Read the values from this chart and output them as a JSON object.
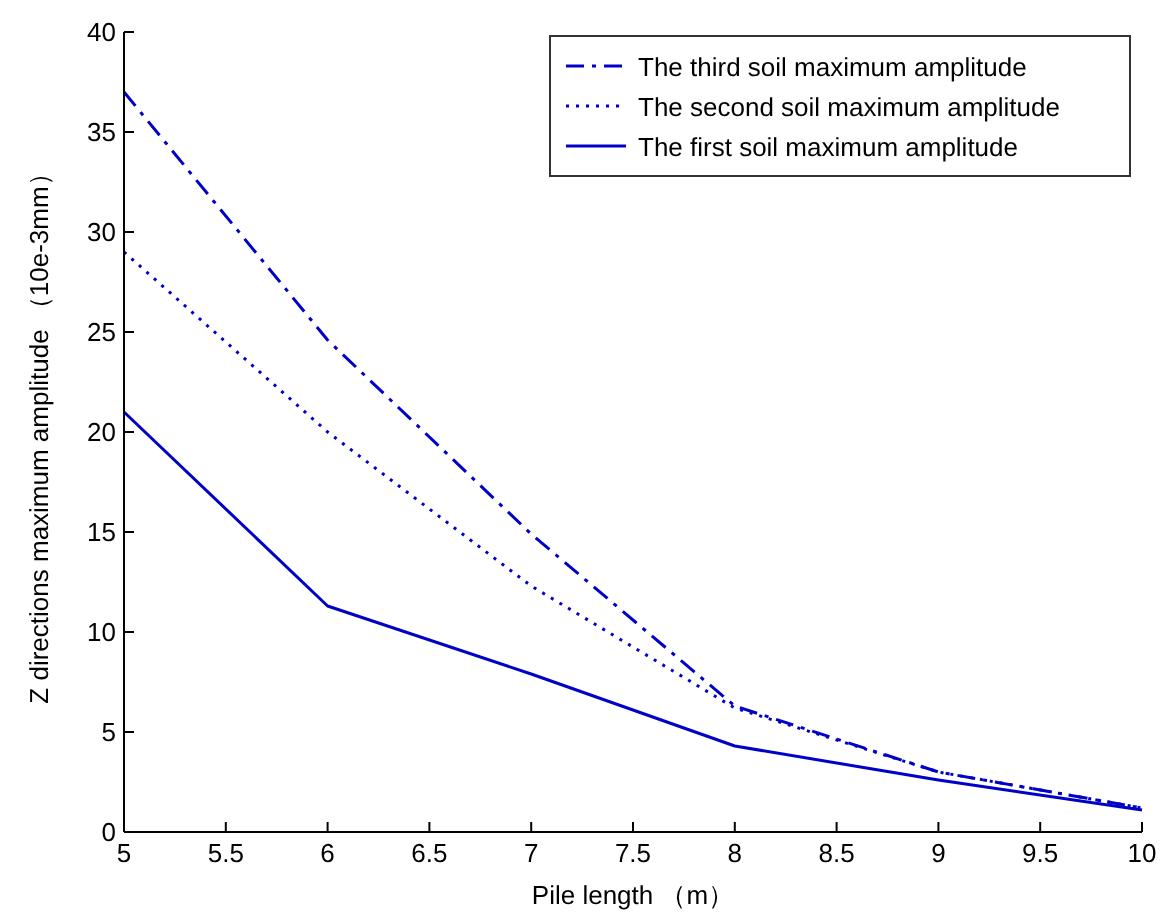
{
  "chart_data": {
    "type": "line",
    "xlabel": "Pile length （m）",
    "ylabel": "Z directions maximum amplitude （10e-3mm）",
    "xlim": [
      5,
      10
    ],
    "ylim": [
      0,
      40
    ],
    "xticks": [
      5,
      5.5,
      6,
      6.5,
      7,
      7.5,
      8,
      8.5,
      9,
      9.5,
      10
    ],
    "yticks": [
      0,
      5,
      10,
      15,
      20,
      25,
      30,
      35,
      40
    ],
    "grid": false,
    "legend": "top right",
    "series": [
      {
        "name": "The third soil maximum amplitude",
        "color": "#0000c8",
        "line_style": "dashdot",
        "x": [
          5,
          6,
          7,
          8,
          9,
          10
        ],
        "values": [
          37,
          24.6,
          14.9,
          6.3,
          3,
          1.2
        ]
      },
      {
        "name": "The second soil maximum amplitude",
        "color": "#0000c8",
        "line_style": "dotted",
        "x": [
          5,
          6,
          7,
          8,
          9,
          10
        ],
        "values": [
          29,
          20,
          12.3,
          6.2,
          3,
          1.2
        ]
      },
      {
        "name": "The first soil maximum amplitude",
        "color": "#0000c8",
        "line_style": "solid",
        "x": [
          5,
          6,
          7,
          8,
          9,
          10
        ],
        "values": [
          21,
          11.3,
          7.9,
          4.3,
          2.6,
          1.1
        ]
      }
    ]
  }
}
